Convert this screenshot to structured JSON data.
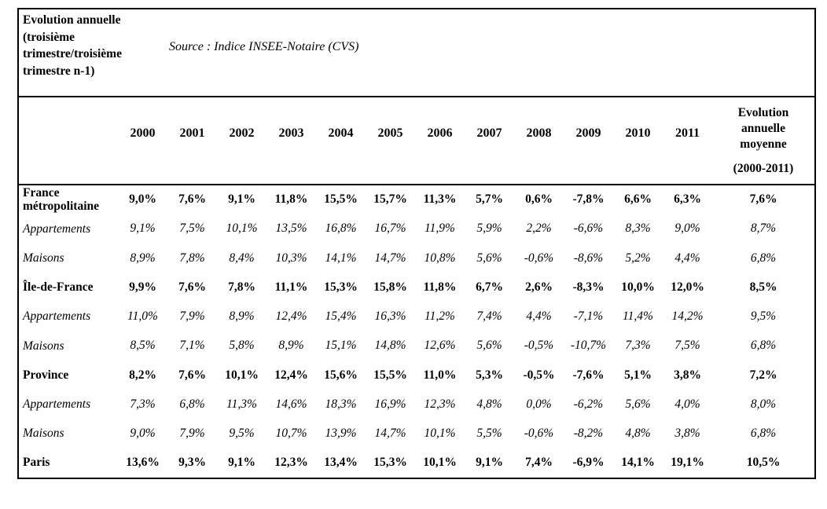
{
  "header": {
    "title": "Evolution annuelle\n(troisième\ntrimestre/troisième\ntrimestre n-1)",
    "source": "Source : Indice INSEE-Notaire (CVS)"
  },
  "table": {
    "years": [
      "2000",
      "2001",
      "2002",
      "2003",
      "2004",
      "2005",
      "2006",
      "2007",
      "2008",
      "2009",
      "2010",
      "2011"
    ],
    "avg_title": "Evolution\nannuelle\nmoyenne",
    "avg_range": "(2000-2011)",
    "rows": [
      {
        "label": "France métropolitaine",
        "style": "bold",
        "values": [
          "9,0%",
          "7,6%",
          "9,1%",
          "11,8%",
          "15,5%",
          "15,7%",
          "11,3%",
          "5,7%",
          "0,6%",
          "-7,8%",
          "6,6%",
          "6,3%"
        ],
        "avg": "7,6%"
      },
      {
        "label": "Appartements",
        "style": "italic",
        "values": [
          "9,1%",
          "7,5%",
          "10,1%",
          "13,5%",
          "16,8%",
          "16,7%",
          "11,9%",
          "5,9%",
          "2,2%",
          "-6,6%",
          "8,3%",
          "9,0%"
        ],
        "avg": "8,7%"
      },
      {
        "label": "Maisons",
        "style": "italic",
        "values": [
          "8,9%",
          "7,8%",
          "8,4%",
          "10,3%",
          "14,1%",
          "14,7%",
          "10,8%",
          "5,6%",
          "-0,6%",
          "-8,6%",
          "5,2%",
          "4,4%"
        ],
        "avg": "6,8%"
      },
      {
        "label": "Île-de-France",
        "style": "bold",
        "values": [
          "9,9%",
          "7,6%",
          "7,8%",
          "11,1%",
          "15,3%",
          "15,8%",
          "11,8%",
          "6,7%",
          "2,6%",
          "-8,3%",
          "10,0%",
          "12,0%"
        ],
        "avg": "8,5%"
      },
      {
        "label": "Appartements",
        "style": "italic",
        "values": [
          "11,0%",
          "7,9%",
          "8,9%",
          "12,4%",
          "15,4%",
          "16,3%",
          "11,2%",
          "7,4%",
          "4,4%",
          "-7,1%",
          "11,4%",
          "14,2%"
        ],
        "avg": "9,5%"
      },
      {
        "label": "Maisons",
        "style": "italic",
        "values": [
          "8,5%",
          "7,1%",
          "5,8%",
          "8,9%",
          "15,1%",
          "14,8%",
          "12,6%",
          "5,6%",
          "-0,5%",
          "-10,7%",
          "7,3%",
          "7,5%"
        ],
        "avg": "6,8%"
      },
      {
        "label": "Province",
        "style": "bold",
        "values": [
          "8,2%",
          "7,6%",
          "10,1%",
          "12,4%",
          "15,6%",
          "15,5%",
          "11,0%",
          "5,3%",
          "-0,5%",
          "-7,6%",
          "5,1%",
          "3,8%"
        ],
        "avg": "7,2%"
      },
      {
        "label": "Appartements",
        "style": "italic",
        "values": [
          "7,3%",
          "6,8%",
          "11,3%",
          "14,6%",
          "18,3%",
          "16,9%",
          "12,3%",
          "4,8%",
          "0,0%",
          "-6,2%",
          "5,6%",
          "4,0%"
        ],
        "avg": "8,0%"
      },
      {
        "label": "Maisons",
        "style": "italic",
        "values": [
          "9,0%",
          "7,9%",
          "9,5%",
          "10,7%",
          "13,9%",
          "14,7%",
          "10,1%",
          "5,5%",
          "-0,6%",
          "-8,2%",
          "4,8%",
          "3,8%"
        ],
        "avg": "6,8%"
      },
      {
        "label": "Paris",
        "style": "bold",
        "values": [
          "13,6%",
          "9,3%",
          "9,1%",
          "12,3%",
          "13,4%",
          "15,3%",
          "10,1%",
          "9,1%",
          "7,4%",
          "-6,9%",
          "14,1%",
          "19,1%"
        ],
        "avg": "10,5%"
      }
    ]
  }
}
